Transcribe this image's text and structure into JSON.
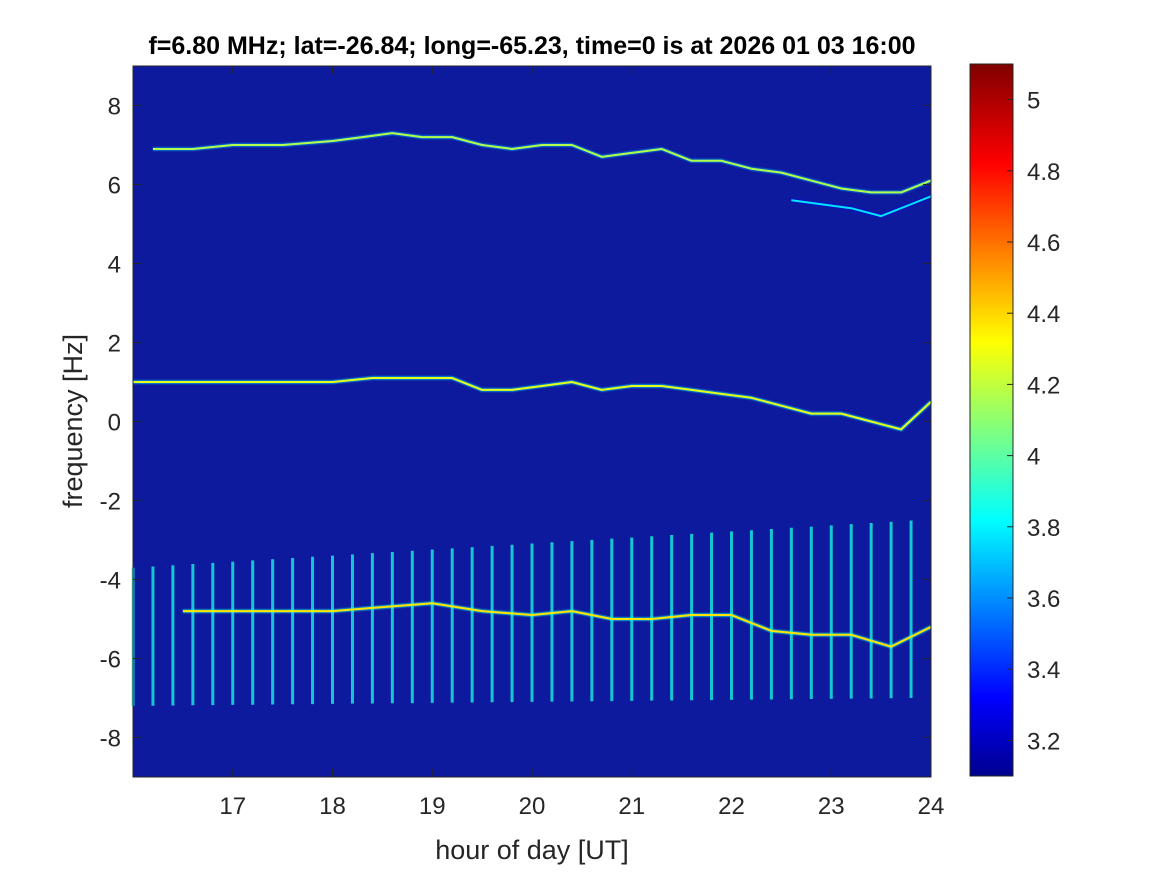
{
  "chart_data": {
    "type": "heatmap",
    "title": "f=6.80 MHz;  lat=-26.84; long=-65.23, time=0 is at 2026 01 03 16:00",
    "xlabel": "hour of day [UT]",
    "ylabel": "frequency [Hz]",
    "xlim": [
      16,
      24
    ],
    "ylim": [
      -9,
      9
    ],
    "xticks": [
      17,
      18,
      19,
      20,
      21,
      22,
      23,
      24
    ],
    "yticks": [
      -8,
      -6,
      -4,
      -2,
      0,
      2,
      4,
      6,
      8
    ],
    "grid": false,
    "colorbar": {
      "colormap": "jet",
      "range": [
        3.1,
        5.1
      ],
      "ticks": [
        3.2,
        3.4,
        3.6,
        3.8,
        4,
        4.2,
        4.4,
        4.6,
        4.8,
        5
      ]
    },
    "background_value": 3.15,
    "traces": [
      {
        "name": "upper trace",
        "x": [
          16.2,
          16.6,
          17.0,
          17.5,
          18.0,
          18.3,
          18.6,
          18.9,
          19.2,
          19.5,
          19.8,
          20.1,
          20.4,
          20.7,
          21.0,
          21.3,
          21.6,
          21.9,
          22.2,
          22.5,
          22.8,
          23.1,
          23.4,
          23.7,
          24.0
        ],
        "y": [
          6.9,
          6.9,
          7.0,
          7.0,
          7.1,
          7.2,
          7.3,
          7.2,
          7.2,
          7.0,
          6.9,
          7.0,
          7.0,
          6.7,
          6.8,
          6.9,
          6.6,
          6.6,
          6.4,
          6.3,
          6.1,
          5.9,
          5.8,
          5.8,
          6.1
        ],
        "level": 4.2
      },
      {
        "name": "upper secondary trace",
        "x": [
          22.6,
          22.9,
          23.2,
          23.5,
          23.8,
          24.0
        ],
        "y": [
          5.6,
          5.5,
          5.4,
          5.2,
          5.5,
          5.7
        ],
        "level": 3.8
      },
      {
        "name": "middle trace",
        "x": [
          16.0,
          16.5,
          17.0,
          17.5,
          18.0,
          18.4,
          18.8,
          19.2,
          19.5,
          19.8,
          20.1,
          20.4,
          20.7,
          21.0,
          21.3,
          21.6,
          21.9,
          22.2,
          22.5,
          22.8,
          23.1,
          23.4,
          23.7,
          24.0
        ],
        "y": [
          1.0,
          1.0,
          1.0,
          1.0,
          1.0,
          1.1,
          1.1,
          1.1,
          0.8,
          0.8,
          0.9,
          1.0,
          0.8,
          0.9,
          0.9,
          0.8,
          0.7,
          0.6,
          0.4,
          0.2,
          0.2,
          0.0,
          -0.2,
          0.5
        ],
        "level": 4.3
      },
      {
        "name": "lower trace",
        "x": [
          16.5,
          17.0,
          17.5,
          18.0,
          18.5,
          19.0,
          19.5,
          20.0,
          20.4,
          20.8,
          21.2,
          21.6,
          22.0,
          22.4,
          22.8,
          23.2,
          23.6,
          24.0
        ],
        "y": [
          -4.8,
          -4.8,
          -4.8,
          -4.8,
          -4.7,
          -4.6,
          -4.8,
          -4.9,
          -4.8,
          -5.0,
          -5.0,
          -4.9,
          -4.9,
          -5.3,
          -5.4,
          -5.4,
          -5.7,
          -5.2
        ],
        "level": 4.4
      }
    ],
    "vertical_bands": {
      "x_start": 16.0,
      "x_end": 23.85,
      "spacing_hours": 0.2,
      "y_range_start": [
        -7.2,
        -3.7
      ],
      "y_range_end": [
        -7.0,
        -2.5
      ],
      "level": 3.9
    }
  }
}
